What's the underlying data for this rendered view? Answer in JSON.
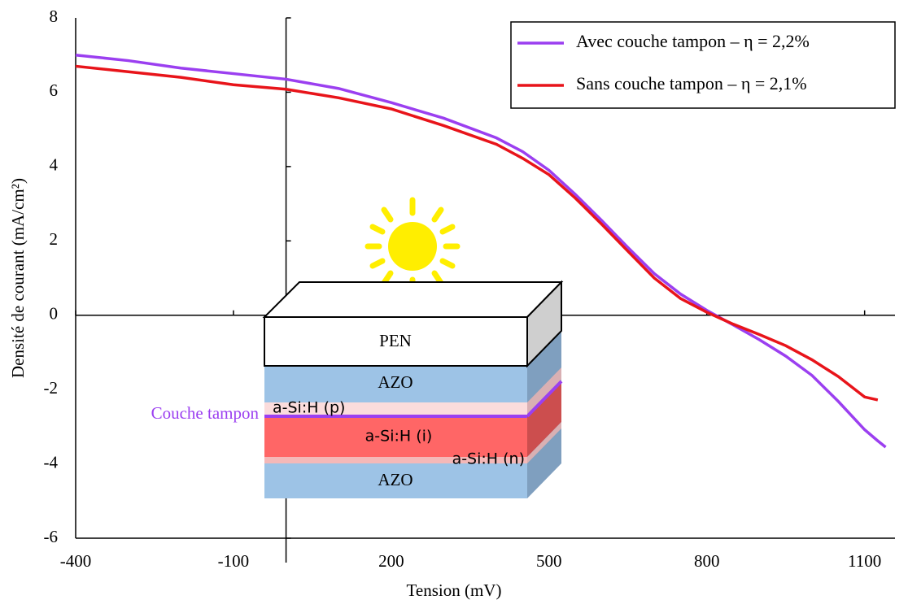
{
  "chart_data": {
    "type": "line",
    "x_label": "Tension (mV)",
    "y_label": "Densité de courant (mA/cm²)",
    "x": [
      -400,
      -300,
      -200,
      -100,
      0,
      100,
      200,
      300,
      400,
      450,
      500,
      550,
      600,
      650,
      700,
      750,
      800,
      850,
      900,
      950,
      1000,
      1050,
      1100,
      1125,
      1140
    ],
    "series": [
      {
        "name": "Avec couche tampon – η = 2,2%",
        "color": "#9b3ff0",
        "values": [
          7.0,
          6.85,
          6.65,
          6.5,
          6.35,
          6.1,
          5.72,
          5.3,
          4.77,
          4.4,
          3.9,
          3.25,
          2.55,
          1.82,
          1.12,
          0.57,
          0.13,
          -0.26,
          -0.66,
          -1.1,
          -1.62,
          -2.32,
          -3.08,
          -3.38,
          -3.55
        ]
      },
      {
        "name": "Sans couche tampon – η = 2,1%",
        "color": "#e8141a",
        "values": [
          6.7,
          6.55,
          6.4,
          6.2,
          6.08,
          5.85,
          5.55,
          5.1,
          4.6,
          4.22,
          3.78,
          3.15,
          2.45,
          1.72,
          1.0,
          0.45,
          0.08,
          -0.24,
          -0.52,
          -0.82,
          -1.2,
          -1.65,
          -2.2,
          -2.28,
          null
        ]
      }
    ],
    "xlim": [
      -400,
      1150
    ],
    "xticks": [
      -400,
      -100,
      200,
      500,
      800,
      1100
    ],
    "ylim": [
      -6,
      8
    ],
    "yticks": [
      -6,
      -4,
      -2,
      0,
      2,
      4,
      6,
      8
    ],
    "legend": "top-right"
  },
  "inset": {
    "layers": [
      "PEN",
      "AZO",
      "a-Si:H (p)",
      "a-Si:H (i)",
      "a-Si:H (n)",
      "AZO"
    ],
    "annotation": "Couche tampon"
  }
}
